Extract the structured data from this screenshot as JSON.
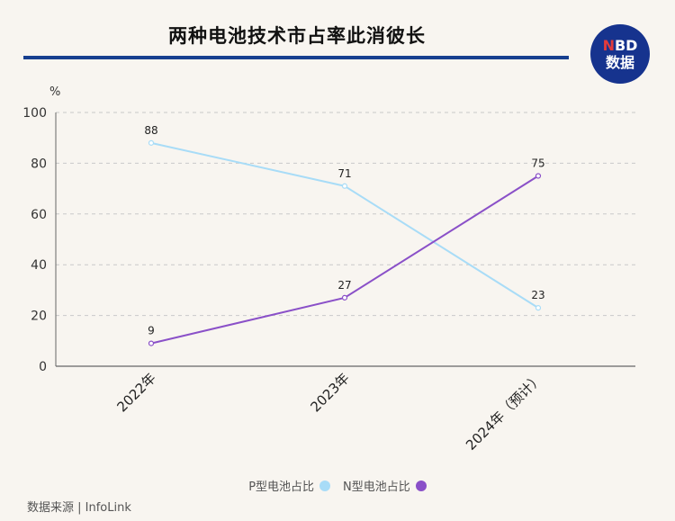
{
  "header": {
    "title": "两种电池技术市占率此消彼长",
    "logo_top": "NBD",
    "logo_bottom": "数据"
  },
  "source": "数据来源 | InfoLink",
  "chart_data": {
    "type": "line",
    "categories": [
      "2022年",
      "2023年",
      "2024年（预计）"
    ],
    "ylabel": "%",
    "ylim": [
      0,
      100
    ],
    "yticks": [
      0,
      20,
      40,
      60,
      80,
      100
    ],
    "grid": true,
    "legend_position": "bottom",
    "series": [
      {
        "name": "P型电池占比",
        "values": [
          88,
          71,
          23
        ],
        "color": "#a8dcf7"
      },
      {
        "name": "N型电池占比",
        "values": [
          9,
          27,
          75
        ],
        "color": "#8a50c8"
      }
    ]
  }
}
